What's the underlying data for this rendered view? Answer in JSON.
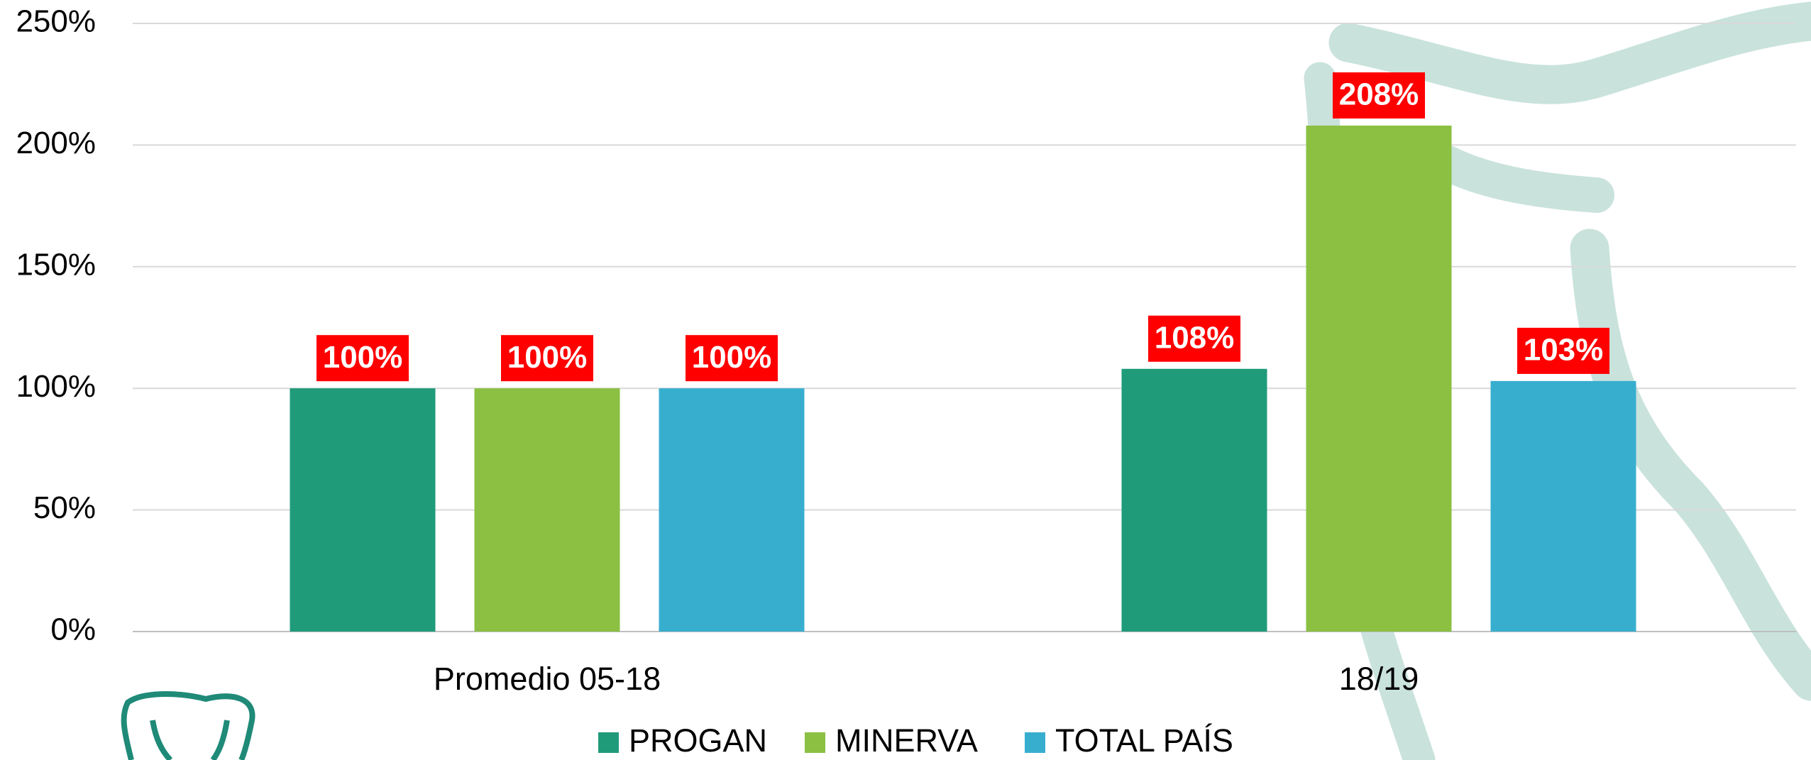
{
  "chart_data": {
    "type": "bar",
    "categories": [
      "Promedio 05-18",
      "18/19"
    ],
    "series": [
      {
        "name": "PROGAN",
        "color": "#1f9b7a",
        "values": [
          100,
          108
        ],
        "value_labels": [
          "100%",
          "108%"
        ]
      },
      {
        "name": "MINERVA",
        "color": "#8bc043",
        "values": [
          100,
          208
        ],
        "value_labels": [
          "100%",
          "208%"
        ]
      },
      {
        "name": "TOTAL PAÍS",
        "color": "#38aecf",
        "values": [
          100,
          103
        ],
        "value_labels": [
          "100%",
          "103%"
        ]
      }
    ],
    "ylim": [
      0,
      250
    ],
    "yticks": [
      {
        "value": 0,
        "label": "0%"
      },
      {
        "value": 50,
        "label": "50%"
      },
      {
        "value": 100,
        "label": "100%"
      },
      {
        "value": 150,
        "label": "150%"
      },
      {
        "value": 200,
        "label": "200%"
      },
      {
        "value": 250,
        "label": "250%"
      }
    ],
    "grid": true,
    "label_color": "#ff0000",
    "legend": "bottom"
  }
}
